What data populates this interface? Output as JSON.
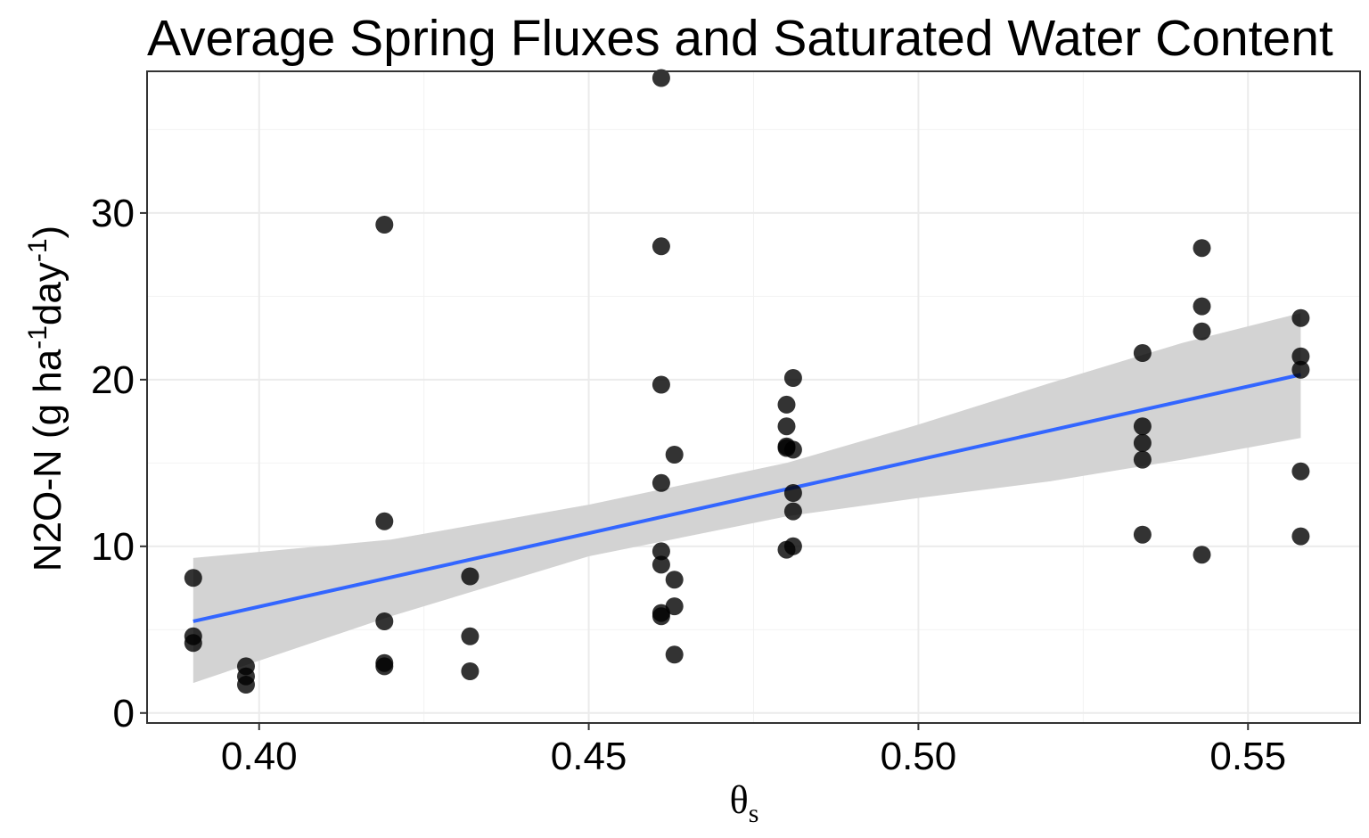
{
  "chart_data": {
    "type": "scatter",
    "title": "Average Spring Fluxes and Saturated Water Content",
    "xlabel": {
      "base": "θ",
      "sub": "s"
    },
    "ylabel": {
      "pre": "N2O-N (g ha",
      "sup1": "-1",
      "mid": "day",
      "sup2": "-1",
      "post": ")"
    },
    "xlim": [
      0.383,
      0.567
    ],
    "ylim": [
      -0.6,
      38.5
    ],
    "x_ticks": [
      "0.40",
      "0.45",
      "0.50",
      "0.55"
    ],
    "y_ticks": [
      "0",
      "10",
      "20",
      "30"
    ],
    "grid": true,
    "points": [
      {
        "x": 0.39,
        "y": 8.1
      },
      {
        "x": 0.39,
        "y": 4.6
      },
      {
        "x": 0.39,
        "y": 4.2
      },
      {
        "x": 0.398,
        "y": 2.8
      },
      {
        "x": 0.398,
        "y": 2.2
      },
      {
        "x": 0.398,
        "y": 1.7
      },
      {
        "x": 0.419,
        "y": 29.3
      },
      {
        "x": 0.419,
        "y": 11.5
      },
      {
        "x": 0.419,
        "y": 5.5
      },
      {
        "x": 0.419,
        "y": 3.0
      },
      {
        "x": 0.419,
        "y": 2.8
      },
      {
        "x": 0.432,
        "y": 8.2
      },
      {
        "x": 0.432,
        "y": 4.6
      },
      {
        "x": 0.432,
        "y": 2.5
      },
      {
        "x": 0.461,
        "y": 38.1
      },
      {
        "x": 0.461,
        "y": 28.0
      },
      {
        "x": 0.461,
        "y": 19.7
      },
      {
        "x": 0.461,
        "y": 13.8
      },
      {
        "x": 0.461,
        "y": 9.7
      },
      {
        "x": 0.461,
        "y": 8.9
      },
      {
        "x": 0.461,
        "y": 6.0
      },
      {
        "x": 0.461,
        "y": 5.8
      },
      {
        "x": 0.463,
        "y": 15.5
      },
      {
        "x": 0.463,
        "y": 8.0
      },
      {
        "x": 0.463,
        "y": 6.4
      },
      {
        "x": 0.463,
        "y": 3.5
      },
      {
        "x": 0.48,
        "y": 18.5
      },
      {
        "x": 0.48,
        "y": 17.2
      },
      {
        "x": 0.48,
        "y": 16.0
      },
      {
        "x": 0.48,
        "y": 15.9
      },
      {
        "x": 0.48,
        "y": 9.8
      },
      {
        "x": 0.481,
        "y": 20.1
      },
      {
        "x": 0.481,
        "y": 15.8
      },
      {
        "x": 0.481,
        "y": 13.2
      },
      {
        "x": 0.481,
        "y": 12.1
      },
      {
        "x": 0.481,
        "y": 10.0
      },
      {
        "x": 0.534,
        "y": 21.6
      },
      {
        "x": 0.534,
        "y": 17.2
      },
      {
        "x": 0.534,
        "y": 16.2
      },
      {
        "x": 0.534,
        "y": 15.2
      },
      {
        "x": 0.534,
        "y": 10.7
      },
      {
        "x": 0.543,
        "y": 27.9
      },
      {
        "x": 0.543,
        "y": 24.4
      },
      {
        "x": 0.543,
        "y": 22.9
      },
      {
        "x": 0.543,
        "y": 9.5
      },
      {
        "x": 0.558,
        "y": 23.7
      },
      {
        "x": 0.558,
        "y": 21.4
      },
      {
        "x": 0.558,
        "y": 20.6
      },
      {
        "x": 0.558,
        "y": 14.5
      },
      {
        "x": 0.558,
        "y": 10.6
      }
    ],
    "fit_line": {
      "x": [
        0.39,
        0.558
      ],
      "y": [
        5.5,
        20.3
      ],
      "color": "#3366FF"
    },
    "ci_band": {
      "x": [
        0.39,
        0.42,
        0.45,
        0.48,
        0.5,
        0.52,
        0.54,
        0.558
      ],
      "lower": [
        1.8,
        5.8,
        9.4,
        11.8,
        12.9,
        13.9,
        15.2,
        16.5
      ],
      "upper": [
        9.3,
        10.4,
        12.5,
        15.0,
        17.3,
        19.8,
        22.2,
        24.0
      ],
      "color": "#D3D3D3"
    },
    "point_color": "#000000"
  }
}
